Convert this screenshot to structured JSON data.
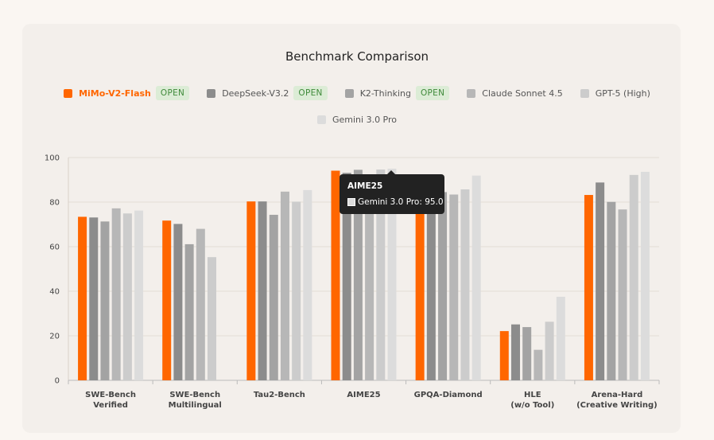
{
  "chart_data": {
    "type": "bar",
    "title": "Benchmark Comparison",
    "categories": [
      [
        "SWE-Bench",
        "Verified"
      ],
      [
        "SWE-Bench",
        "Multilingual"
      ],
      [
        "Tau2-Bench"
      ],
      [
        "AIME25"
      ],
      [
        "GPQA-Diamond"
      ],
      [
        "HLE",
        "(w/o Tool)"
      ],
      [
        "Arena-Hard",
        "(Creative Writing)"
      ]
    ],
    "ylim": [
      0,
      100
    ],
    "yticks": [
      0,
      20,
      40,
      60,
      80,
      100
    ],
    "grid": true,
    "legend_position": "top",
    "series": [
      {
        "name": "MiMo-V2-Flash",
        "badge": "OPEN",
        "color": "#ff6600",
        "values": [
          73.4,
          71.7,
          80.3,
          94.1,
          83.7,
          22.1,
          83.2
        ]
      },
      {
        "name": "DeepSeek-V3.2",
        "badge": "OPEN",
        "color": "#8c8c8c",
        "values": [
          73.1,
          70.2,
          80.3,
          93.1,
          82.4,
          25.1,
          88.8
        ]
      },
      {
        "name": "K2-Thinking",
        "badge": "OPEN",
        "color": "#a3a3a3",
        "values": [
          71.3,
          61.1,
          74.3,
          94.5,
          84.5,
          23.9,
          80.1
        ]
      },
      {
        "name": "Claude Sonnet 4.5",
        "badge": "",
        "color": "#b7b7b7",
        "values": [
          77.2,
          68.0,
          84.7,
          87.0,
          83.4,
          13.7,
          76.7
        ]
      },
      {
        "name": "GPT-5 (High)",
        "badge": "",
        "color": "#cccccc",
        "values": [
          74.9,
          55.3,
          80.2,
          94.6,
          85.7,
          26.3,
          92.2
        ]
      },
      {
        "name": "Gemini 3.0 Pro",
        "badge": "",
        "color": "#dcdcdc",
        "values": [
          76.2,
          null,
          85.4,
          95.0,
          91.9,
          37.5,
          93.6
        ]
      }
    ]
  },
  "tooltip": {
    "title": "AIME25",
    "row": "Gemini 3.0 Pro: 95.0"
  }
}
